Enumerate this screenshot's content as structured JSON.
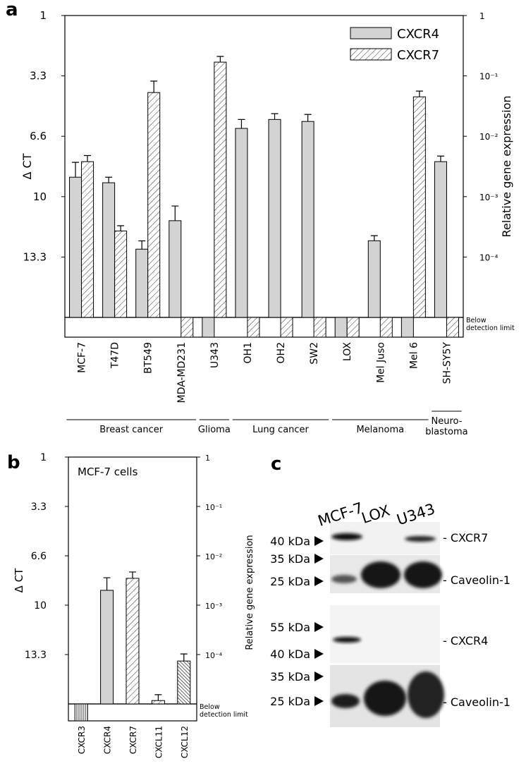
{
  "panels": [
    "a",
    "b",
    "c"
  ],
  "chart_data": [
    {
      "type": "bar",
      "log": true,
      "ylabel": "Δ CT",
      "y2label": "Relative gene expression",
      "note": "Below\ndetection limit",
      "categories": [
        "MCF-7",
        "T47D",
        "BT549",
        "MDA-MD231",
        "U343",
        "OH1",
        "OH2",
        "SW2",
        "LOX",
        "Mel Juso",
        "Mel 6",
        "SH-SY5Y"
      ],
      "groups": [
        "Breast cancer",
        "Breast cancer",
        "Breast cancer",
        "Breast cancer",
        "Glioma",
        "Lung cancer",
        "Lung cancer",
        "Lung cancer",
        "Melanoma",
        "Melanoma",
        "Melanoma",
        "Neuro-\nblastoma"
      ],
      "series": [
        {
          "name": "CXCR4",
          "color": "#d3d3d3",
          "hatch": false,
          "values": [
            0.0021,
            0.0017,
            0.000135,
            0.0004,
            null,
            0.0135,
            0.019,
            0.0176,
            null,
            0.000186,
            null,
            0.0038
          ],
          "errors": [
            0.0016,
            0.0004,
            5e-05,
            0.0003,
            null,
            0.0055,
            0.0047,
            0.0054,
            null,
            4e-05,
            null,
            0.0009
          ]
        },
        {
          "name": "CXCR7",
          "color": "#ffffff",
          "hatch": true,
          "values": [
            0.0038,
            0.00027,
            0.053,
            null,
            0.169,
            null,
            null,
            null,
            null,
            null,
            0.045,
            null
          ],
          "errors": [
            0.001,
            6e-05,
            0.029,
            null,
            0.041,
            null,
            null,
            null,
            null,
            null,
            0.011,
            null
          ]
        }
      ],
      "ylim": [
        1e-05,
        1
      ],
      "yticks": [
        1,
        {
          "value": 0.1,
          "label": "3.3"
        },
        {
          "value": 0.01,
          "label": "6.6"
        },
        {
          "value": 0.001,
          "label": "10"
        },
        {
          "value": 0.0001,
          "label": "13.3"
        }
      ],
      "y2ticks": [
        1,
        {
          "value": 0.1,
          "label": "10⁻¹"
        },
        {
          "value": 0.01,
          "label": "10⁻²"
        },
        {
          "value": 0.001,
          "label": "10⁻³"
        },
        {
          "value": 0.0001,
          "label": "10⁻⁴"
        }
      ],
      "grid": false,
      "legend": "upper right"
    },
    {
      "type": "bar",
      "log": true,
      "title": "MCF-7 cells",
      "ylabel": "Δ CT",
      "note": "Below\ndetection limit",
      "categories": [
        "CXCR3",
        "CXCR4",
        "CXCR7",
        "CXCL11",
        "CXCL12"
      ],
      "patterns": [
        "vertical",
        "solid",
        "hatch",
        "hatch",
        "dense"
      ],
      "series": [
        {
          "color": "#d3d3d3",
          "values": [
            null,
            0.002,
            0.0035,
            1.17e-05,
            7.4e-05
          ],
          "errors": [
            null,
            0.0016,
            0.0012,
            3.7e-06,
            2.9e-05
          ]
        }
      ],
      "ylim": [
        1e-05,
        1
      ],
      "yticks": [
        1,
        {
          "value": 0.1,
          "label": "3.3"
        },
        {
          "value": 0.01,
          "label": "6.6"
        },
        {
          "value": 0.001,
          "label": "10"
        },
        {
          "value": 0.0001,
          "label": "13.3"
        }
      ],
      "y2ticks": [
        1,
        {
          "value": 0.1,
          "label": "10⁻¹"
        },
        {
          "value": 0.01,
          "label": "10⁻²"
        },
        {
          "value": 0.001,
          "label": "10⁻³"
        },
        {
          "value": 0.0001,
          "label": "10⁻⁴"
        }
      ],
      "grid": false
    }
  ],
  "blot": {
    "samples": [
      "MCF-7",
      "LOX",
      "U343"
    ],
    "side_label": "Relative gene expression",
    "blots": [
      {
        "protein": "- CXCR7",
        "markers": [
          "40 kDa"
        ]
      },
      {
        "protein": "- Caveolin-1",
        "markers": [
          "35 kDa",
          "25 kDa"
        ]
      },
      {
        "protein": "- CXCR4",
        "markers": [
          "55 kDa",
          "40 kDa"
        ]
      },
      {
        "protein": "- Caveolin-1",
        "markers": [
          "35 kDa",
          "25 kDa"
        ]
      }
    ]
  }
}
